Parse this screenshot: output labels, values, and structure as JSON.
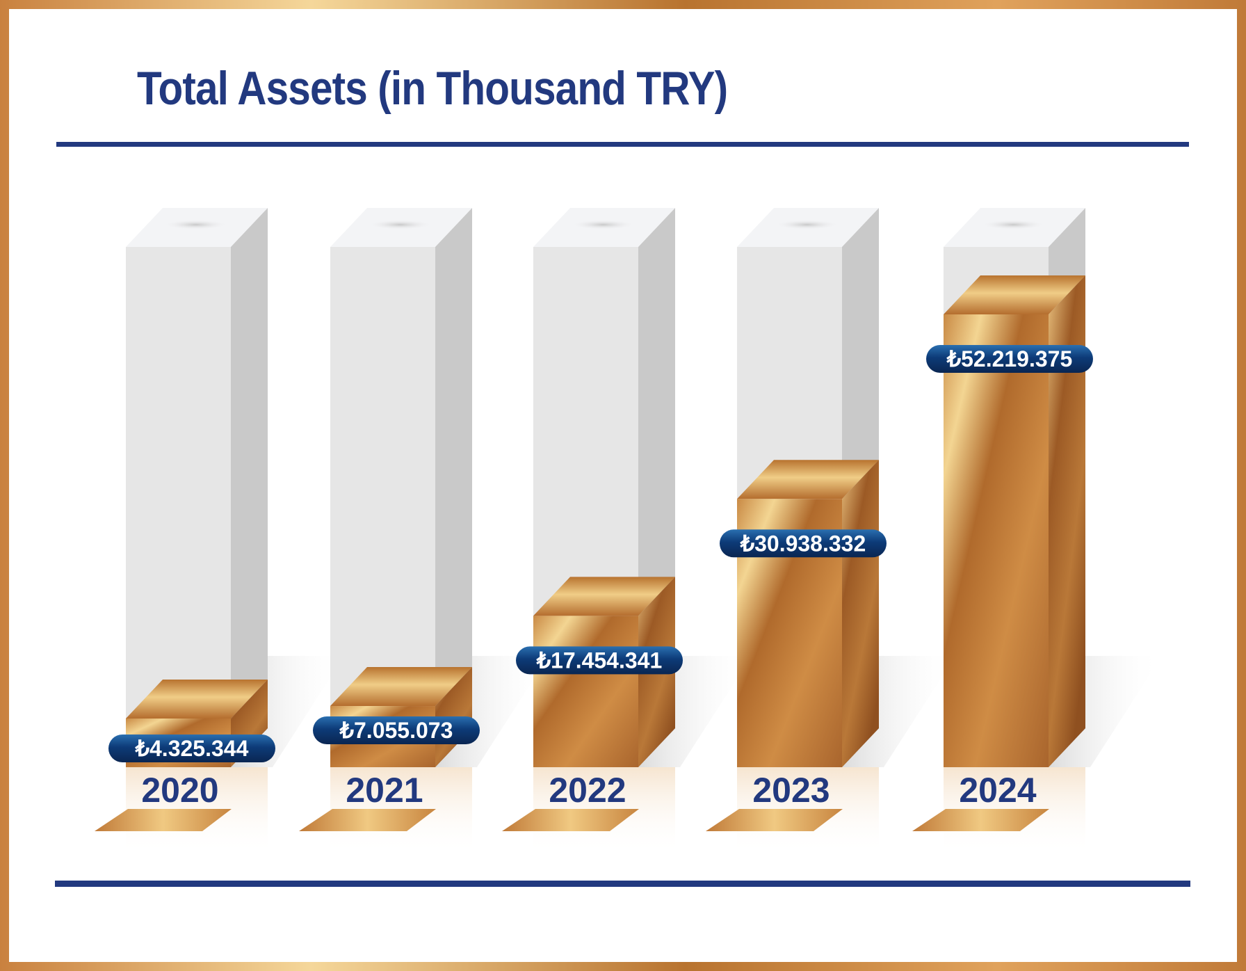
{
  "title": "Total Assets (in Thousand TRY)",
  "colors": {
    "title": "#22397f",
    "rule": "#22397f",
    "bronze_light": "#f3d592",
    "bronze_mid": "#cc8a43",
    "bronze_dark": "#9c5a25",
    "pill": "#0e3a74"
  },
  "chart_data": {
    "type": "bar",
    "title": "Total Assets (in Thousand TRY)",
    "categories": [
      "2020",
      "2021",
      "2022",
      "2023",
      "2024"
    ],
    "values": [
      4325344,
      7055073,
      17454341,
      30938332,
      52219375
    ],
    "data_labels": [
      "₺4.325.344",
      "₺7.055.073",
      "₺17.454.341",
      "₺30.938.332",
      "₺52.219.375"
    ],
    "ylim": [
      0,
      60000000
    ],
    "grid": false,
    "xlabel": "",
    "ylabel": ""
  }
}
